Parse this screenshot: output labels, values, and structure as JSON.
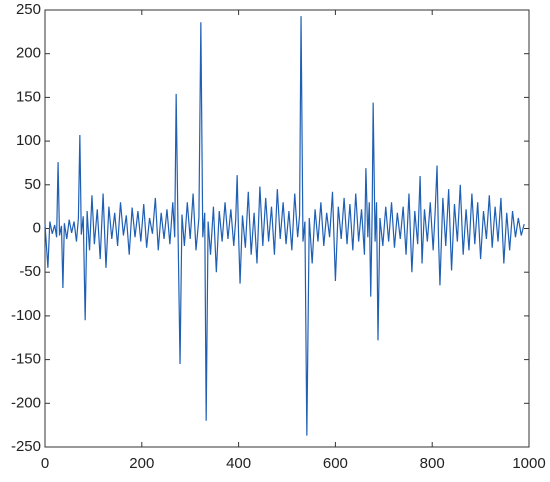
{
  "chart_data": {
    "type": "line",
    "xlim": [
      0,
      1000
    ],
    "xticks": [
      0,
      200,
      400,
      600,
      800,
      1000
    ],
    "ylim": [
      -250,
      250
    ],
    "yticks": [
      -250,
      -200,
      -150,
      -100,
      -50,
      0,
      50,
      100,
      150,
      200,
      250
    ],
    "series": [
      {
        "color": "#1f5fb4",
        "x": [
          0,
          3,
          6,
          10,
          15,
          20,
          24,
          27,
          30,
          34,
          37,
          40,
          45,
          50,
          55,
          60,
          65,
          69,
          72,
          75,
          79,
          83,
          87,
          92,
          97,
          102,
          108,
          114,
          120,
          126,
          132,
          138,
          144,
          150,
          156,
          162,
          168,
          174,
          180,
          186,
          192,
          198,
          204,
          210,
          216,
          222,
          228,
          234,
          240,
          246,
          252,
          258,
          264,
          268,
          271,
          275,
          279,
          283,
          288,
          294,
          300,
          306,
          312,
          318,
          322,
          326,
          330,
          333,
          337,
          342,
          348,
          354,
          360,
          366,
          372,
          378,
          384,
          390,
          394,
          397,
          400,
          403,
          408,
          414,
          420,
          426,
          432,
          438,
          444,
          450,
          456,
          462,
          468,
          474,
          480,
          486,
          492,
          498,
          504,
          510,
          516,
          522,
          526,
          529,
          533,
          537,
          541,
          546,
          552,
          558,
          564,
          570,
          576,
          582,
          588,
          594,
          600,
          606,
          612,
          618,
          624,
          630,
          636,
          642,
          648,
          654,
          660,
          663,
          667,
          670,
          673,
          676,
          678,
          682,
          685,
          688,
          692,
          698,
          704,
          710,
          716,
          722,
          728,
          734,
          740,
          746,
          752,
          758,
          764,
          770,
          775,
          779,
          784,
          790,
          796,
          802,
          806,
          810,
          813,
          816,
          822,
          828,
          834,
          840,
          846,
          852,
          858,
          864,
          870,
          876,
          882,
          888,
          894,
          900,
          906,
          912,
          918,
          924,
          930,
          936,
          942,
          948,
          954,
          960,
          966,
          972,
          978,
          984,
          990
        ],
        "values": [
          5,
          -20,
          -45,
          8,
          -6,
          4,
          -10,
          76,
          -8,
          3,
          -68,
          6,
          -12,
          10,
          -5,
          8,
          -15,
          12,
          107,
          -7,
          14,
          -105,
          20,
          -25,
          38,
          -18,
          22,
          -35,
          40,
          -45,
          25,
          -12,
          18,
          -20,
          30,
          -8,
          15,
          -30,
          24,
          -10,
          20,
          -15,
          28,
          -22,
          12,
          -6,
          35,
          -25,
          18,
          -12,
          22,
          -18,
          30,
          -10,
          154,
          -8,
          -155,
          16,
          -20,
          30,
          -12,
          40,
          -25,
          12,
          236,
          -10,
          18,
          -220,
          8,
          -30,
          25,
          -50,
          20,
          -15,
          30,
          -12,
          22,
          -20,
          10,
          61,
          -8,
          -63,
          15,
          -22,
          42,
          -30,
          18,
          -40,
          48,
          -20,
          35,
          -15,
          25,
          -30,
          45,
          -12,
          30,
          -18,
          20,
          -25,
          40,
          -10,
          15,
          243,
          -15,
          8,
          -237,
          12,
          -40,
          22,
          -15,
          30,
          -20,
          18,
          -10,
          42,
          -60,
          25,
          -12,
          35,
          -18,
          28,
          -25,
          40,
          -15,
          22,
          -30,
          69,
          -10,
          30,
          -78,
          20,
          144,
          -15,
          30,
          -128,
          12,
          -20,
          25,
          -15,
          30,
          -22,
          18,
          -12,
          25,
          -30,
          40,
          -50,
          20,
          -18,
          60,
          -40,
          22,
          -15,
          30,
          -25,
          18,
          72,
          -10,
          -65,
          35,
          -20,
          45,
          -48,
          28,
          -15,
          50,
          -30,
          22,
          -25,
          40,
          -18,
          30,
          -35,
          20,
          -12,
          38,
          -22,
          25,
          -15,
          35,
          -40,
          18,
          -25,
          20,
          -10,
          12,
          -8,
          5
        ]
      }
    ]
  }
}
